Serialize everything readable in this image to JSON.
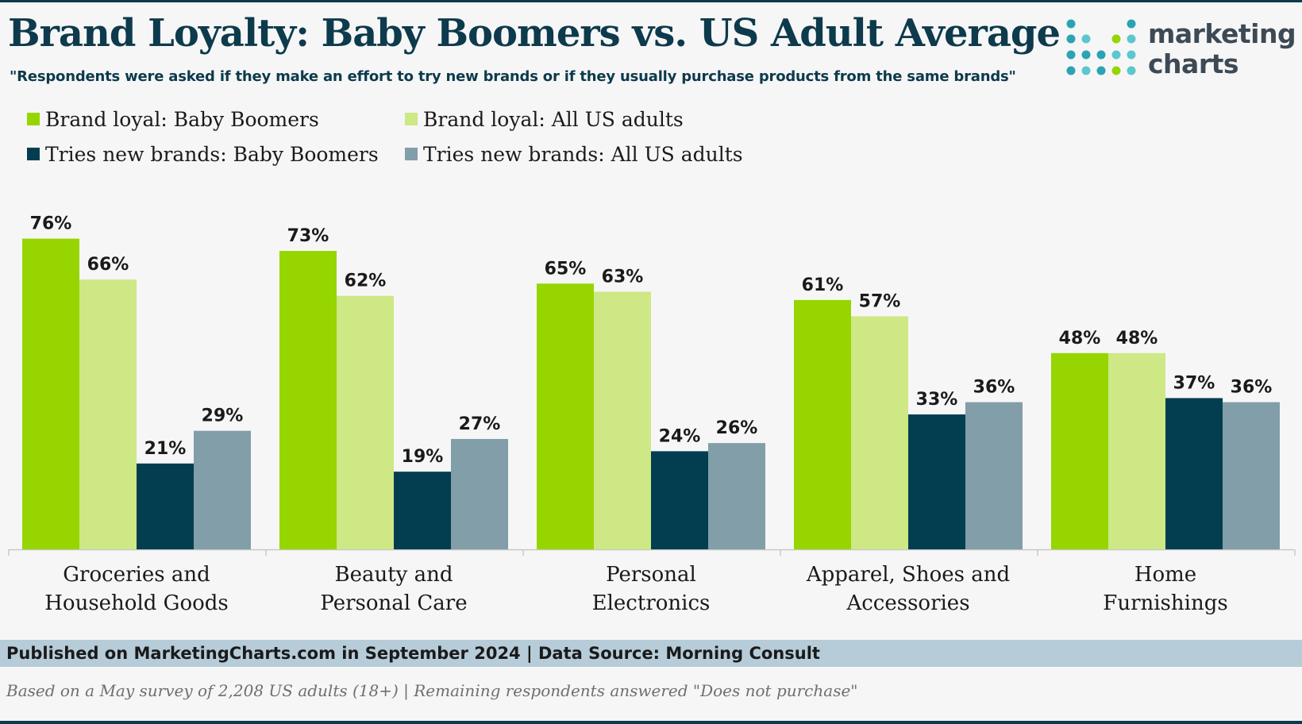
{
  "title": "Brand Loyalty: Baby Boomers vs. US Adult Average",
  "subtitle": "\"Respondents were asked if they make an effort to try new brands or if they usually purchase products from the same brands\"",
  "logo": {
    "line1": "marketing",
    "line2": "charts"
  },
  "footer": {
    "published": "Published on MarketingCharts.com in September 2024 | Data Source: Morning Consult",
    "note": "Based on a May survey of 2,208 US adults (18+) | Remaining respondents answered \"Does not purchase\""
  },
  "colors": {
    "brand_loyal_boomers": "#96d500",
    "brand_loyal_all": "#cde884",
    "tries_new_boomers": "#033e50",
    "tries_new_all": "#829ea8",
    "title": "#0d3a4c"
  },
  "chart_data": {
    "type": "bar",
    "title": "Brand Loyalty: Baby Boomers vs. US Adult Average",
    "categories": [
      [
        "Groceries and",
        "Household Goods"
      ],
      [
        "Beauty and",
        "Personal Care"
      ],
      [
        "Personal",
        "Electronics"
      ],
      [
        "Apparel, Shoes and",
        "Accessories"
      ],
      [
        "Home",
        "Furnishings"
      ]
    ],
    "series": [
      {
        "name": "Brand loyal: Baby Boomers",
        "color": "#96d500",
        "values": [
          76,
          73,
          65,
          61,
          48
        ]
      },
      {
        "name": "Brand loyal: All US adults",
        "color": "#cde884",
        "values": [
          66,
          62,
          63,
          57,
          48
        ]
      },
      {
        "name": "Tries new brands: Baby Boomers",
        "color": "#033e50",
        "values": [
          21,
          19,
          24,
          33,
          37
        ]
      },
      {
        "name": "Tries new brands: All US adults",
        "color": "#829ea8",
        "values": [
          29,
          27,
          26,
          36,
          36
        ]
      }
    ],
    "value_suffix": "%",
    "ylim": [
      0,
      80
    ],
    "grid": false,
    "legend_position": "top-left"
  }
}
